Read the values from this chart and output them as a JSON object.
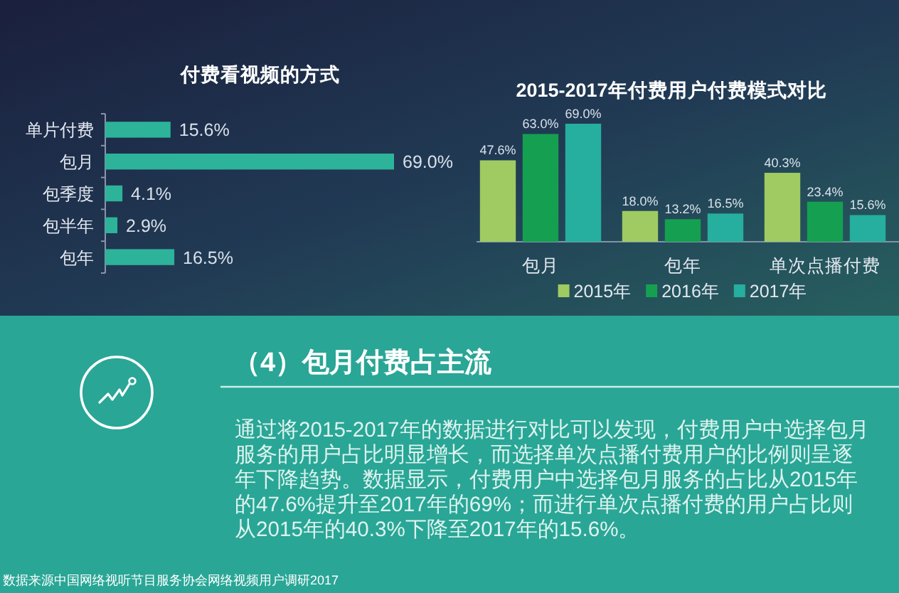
{
  "chart_data": [
    {
      "type": "bar",
      "orientation": "horizontal",
      "title": "付费看视频的方式",
      "categories": [
        "单片付费",
        "包月",
        "包季度",
        "包半年",
        "包年"
      ],
      "values": [
        15.6,
        69.0,
        4.1,
        2.9,
        16.5
      ],
      "value_labels": [
        "15.6%",
        "69.0%",
        "4.1%",
        "2.9%",
        "16.5%"
      ],
      "color": "#2db39a"
    },
    {
      "type": "bar",
      "title": "2015-2017年付费用户付费模式对比",
      "categories": [
        "包月",
        "包年",
        "单次点播付费"
      ],
      "series": [
        {
          "name": "2015年",
          "color": "#9fcb62",
          "values": [
            47.6,
            18.0,
            40.3
          ],
          "value_labels": [
            "47.6%",
            "18.0%",
            "40.3%"
          ]
        },
        {
          "name": "2016年",
          "color": "#14a050",
          "values": [
            63.0,
            13.2,
            23.4
          ],
          "value_labels": [
            "63.0%",
            "13.2%",
            "23.4%"
          ]
        },
        {
          "name": "2017年",
          "color": "#26ae9e",
          "values": [
            69.0,
            16.5,
            15.6
          ],
          "value_labels": [
            "69.0%",
            "16.5%",
            "15.6%"
          ]
        }
      ],
      "legend": "bottom"
    },
    {
      "type": "other",
      "title": "（4）包月付费占主流",
      "annotations": [
        "通过将2015-2017年的数据进行对比可以发现，付费用户中选择包月服务的用户占比明显增长，而选择单次点播付费用户的比例则呈逐年下降趋势。数据显示，付费用户中选择包月服务的占比从2015年的47.6%提升至2017年的69%；而进行单次点播付费的用户占比则从2015年的40.3%下降至2017年的15.6%。",
        "数据来源中国网络视听节目服务协会网络视频用户调研2017"
      ]
    }
  ]
}
